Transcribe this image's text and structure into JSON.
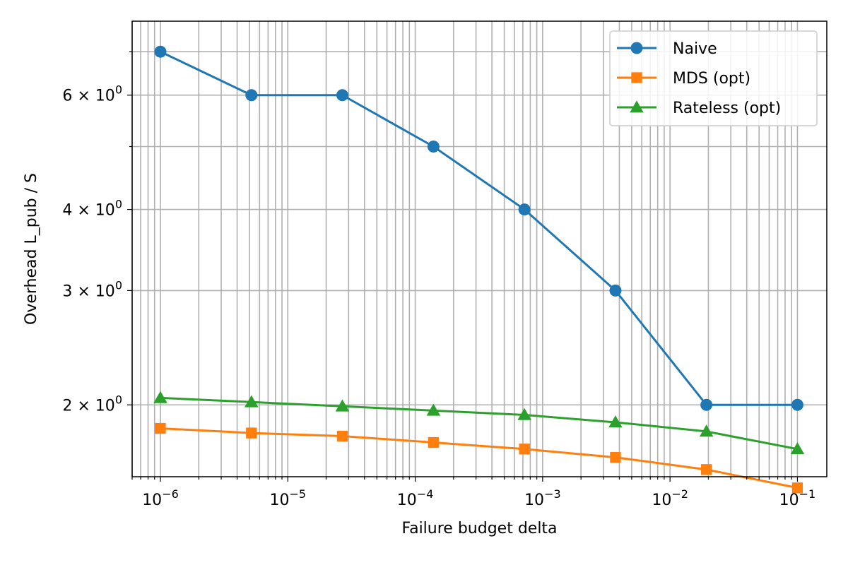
{
  "chart_data": {
    "type": "line",
    "xscale": "log",
    "yscale": "log",
    "xlabel": "Failure budget delta",
    "ylabel": "Overhead L_pub / S",
    "xlim": [
      6e-07,
      0.17
    ],
    "ylim": [
      1.55,
      7.8
    ],
    "grid": "both-major-minor",
    "legend_position": "top-right",
    "x_ticks": [
      {
        "value": 1e-06,
        "base": "10",
        "exp": "−6"
      },
      {
        "value": 1e-05,
        "base": "10",
        "exp": "−5"
      },
      {
        "value": 0.0001,
        "base": "10",
        "exp": "−4"
      },
      {
        "value": 0.001,
        "base": "10",
        "exp": "−3"
      },
      {
        "value": 0.01,
        "base": "10",
        "exp": "−2"
      },
      {
        "value": 0.1,
        "base": "10",
        "exp": "−1"
      }
    ],
    "y_ticks": [
      {
        "value": 2,
        "mant": "2",
        "times": "×",
        "base": "10",
        "exp": "0"
      },
      {
        "value": 3,
        "mant": "3",
        "times": "×",
        "base": "10",
        "exp": "0"
      },
      {
        "value": 4,
        "mant": "4",
        "times": "×",
        "base": "10",
        "exp": "0"
      },
      {
        "value": 6,
        "mant": "6",
        "times": "×",
        "base": "10",
        "exp": "0"
      }
    ],
    "x": [
      1e-06,
      5.18e-06,
      2.68e-05,
      0.000139,
      0.00072,
      0.00373,
      0.0193,
      0.1
    ],
    "series": [
      {
        "name": "Naive",
        "color": "#1f77b4",
        "marker": "circle",
        "values": [
          7.0,
          6.0,
          6.0,
          5.0,
          4.0,
          3.0,
          2.0,
          2.0
        ]
      },
      {
        "name": "MDS (opt)",
        "color": "#ff7f0e",
        "marker": "square",
        "values": [
          1.84,
          1.81,
          1.79,
          1.75,
          1.71,
          1.66,
          1.59,
          1.49
        ]
      },
      {
        "name": "Rateless (opt)",
        "color": "#2ca02c",
        "marker": "triangle",
        "values": [
          2.05,
          2.02,
          1.99,
          1.96,
          1.93,
          1.88,
          1.82,
          1.71
        ]
      }
    ]
  }
}
